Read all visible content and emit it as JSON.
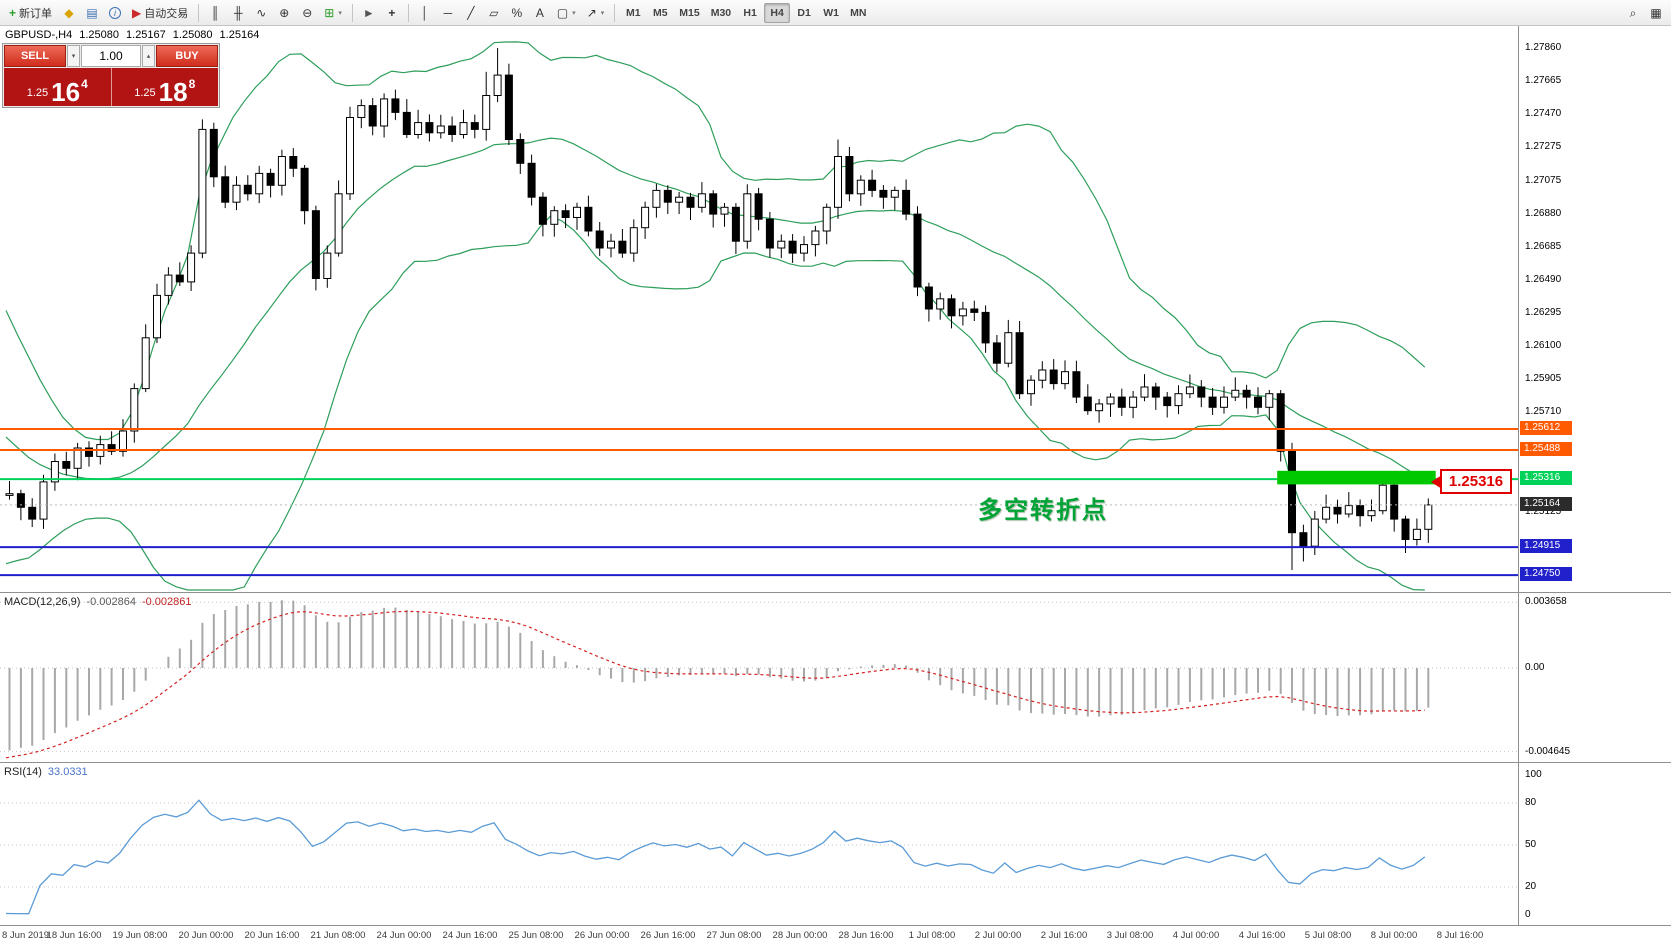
{
  "toolbar": {
    "new_order_label": "新订单",
    "autotrading_label": "自动交易",
    "timeframes": [
      "M1",
      "M5",
      "M15",
      "M30",
      "H1",
      "H4",
      "D1",
      "W1",
      "MN"
    ],
    "active_timeframe": "H4",
    "glyphs": {
      "new_order": "+",
      "market_watch": "◆",
      "chart_window": "▤",
      "info": "i",
      "autotrading": "▶",
      "bar_chart": "║",
      "candle_chart": "╫",
      "line_chart": "∿",
      "zoom_in": "⊕",
      "zoom_out": "⊖",
      "tile": "⊞",
      "cursor": "►",
      "crosshair": "+",
      "vline": "│",
      "hline": "─",
      "trendline": "╱",
      "channel": "▱",
      "fibo": "%",
      "text_tool": "A",
      "shapes": "▢",
      "arrows": "↗",
      "search": "⌕",
      "layout": "▦",
      "caret": "▾",
      "caret_up": "▴"
    }
  },
  "trade_panel": {
    "sell_label": "SELL",
    "buy_label": "BUY",
    "volume": "1.00",
    "sell_small": "1.25",
    "sell_big": "16",
    "sell_sup": "4",
    "buy_small": "1.25",
    "buy_big": "18",
    "buy_sup": "8"
  },
  "chart_header": {
    "symbol": "GBPUSD-,H4",
    "open": "1.25080",
    "high": "1.25167",
    "low": "1.25080",
    "close": "1.25164"
  },
  "annotation": {
    "text": "多空转折点"
  },
  "callout": {
    "text": "1.25316"
  },
  "price_axis": {
    "ticks": [
      {
        "label": "1.27860",
        "value": 1.2786
      },
      {
        "label": "1.27665",
        "value": 1.27665
      },
      {
        "label": "1.27470",
        "value": 1.2747
      },
      {
        "label": "1.27275",
        "value": 1.27275
      },
      {
        "label": "1.27075",
        "value": 1.27075
      },
      {
        "label": "1.26880",
        "value": 1.2688
      },
      {
        "label": "1.26685",
        "value": 1.26685
      },
      {
        "label": "1.26490",
        "value": 1.2649
      },
      {
        "label": "1.26295",
        "value": 1.26295
      },
      {
        "label": "1.26100",
        "value": 1.261
      },
      {
        "label": "1.25905",
        "value": 1.25905
      },
      {
        "label": "1.25710",
        "value": 1.2571
      },
      {
        "label": "1.25125",
        "value": 1.25125
      }
    ],
    "current": {
      "label": "1.25164",
      "value": 1.25164
    }
  },
  "macd": {
    "label": "MACD(12,26,9)",
    "value_main": "-0.002864",
    "value_signal": "-0.002861",
    "axis": [
      {
        "label": "0.003658",
        "value": 0.003658
      },
      {
        "label": "0.00",
        "value": 0
      },
      {
        "label": "-0.004645",
        "value": -0.004645
      }
    ]
  },
  "rsi": {
    "label": "RSI(14)",
    "value": "33.0331",
    "ticks": [
      {
        "label": "100",
        "value": 100
      },
      {
        "label": "80",
        "value": 80
      },
      {
        "label": "50",
        "value": 50
      },
      {
        "label": "20",
        "value": 20
      },
      {
        "label": "0",
        "value": 0
      }
    ],
    "levels": [
      80,
      50,
      20
    ]
  },
  "time_axis": [
    "8 Jun 2019",
    "18 Jun 16:00",
    "19 Jun 08:00",
    "20 Jun 00:00",
    "20 Jun 16:00",
    "21 Jun 08:00",
    "24 Jun 00:00",
    "24 Jun 16:00",
    "25 Jun 08:00",
    "26 Jun 00:00",
    "26 Jun 16:00",
    "27 Jun 08:00",
    "28 Jun 00:00",
    "28 Jun 16:00",
    "1 Jul 08:00",
    "2 Jul 00:00",
    "2 Jul 16:00",
    "3 Jul 08:00",
    "4 Jul 00:00",
    "4 Jul 16:00",
    "5 Jul 08:00",
    "8 Jul 00:00",
    "8 Jul 16:00"
  ],
  "colors": {
    "bands": "#2e9e5b",
    "bull": "#ffffff",
    "bear": "#000000",
    "macd_hist": "#a8a8a8",
    "macd_signal": "#d62222",
    "rsi_line": "#5b9bd5",
    "level_orange": "#ff5a00",
    "level_green": "#00d25a",
    "level_blue": "#2121cc",
    "current_label_bg": "#2b2b2b",
    "rect": "#00c800",
    "annotation": "#00a335",
    "callout": "#e00000",
    "panel_red": "#b21414"
  },
  "chart_data": {
    "type": "candlestick",
    "symbol": "GBPUSD-",
    "timeframe": "H4",
    "title": "GBPUSD- H4 candlestick chart with Bollinger Bands(20,2), MACD(12,26,9), RSI(14)",
    "ohlc_current": {
      "open": 1.2508,
      "high": 1.25167,
      "low": 1.2508,
      "close": 1.25164
    },
    "ylim": [
      1.2465,
      1.2799
    ],
    "pre_closes": [
      1.278,
      1.2768,
      1.2755,
      1.2742,
      1.2728,
      1.2714,
      1.27,
      1.2687,
      1.2674,
      1.2662,
      1.265,
      1.2638,
      1.2626,
      1.2614,
      1.2602,
      1.259,
      1.2578,
      1.2567,
      1.2557,
      1.2548,
      1.2541,
      1.2536,
      1.2532,
      1.2529,
      1.2527,
      1.2526,
      1.2525,
      1.2524,
      1.2523,
      1.2522
    ],
    "closes": [
      1.2523,
      1.2515,
      1.2508,
      1.253,
      1.2542,
      1.2538,
      1.255,
      1.2545,
      1.2552,
      1.2548,
      1.256,
      1.2585,
      1.2615,
      1.264,
      1.2652,
      1.2648,
      1.2665,
      1.2738,
      1.271,
      1.2695,
      1.2705,
      1.27,
      1.2712,
      1.2705,
      1.2722,
      1.2715,
      1.269,
      1.265,
      1.2665,
      1.27,
      1.2745,
      1.2752,
      1.274,
      1.2756,
      1.2748,
      1.2735,
      1.2742,
      1.2736,
      1.274,
      1.2735,
      1.2742,
      1.2738,
      1.2758,
      1.277,
      1.2732,
      1.2718,
      1.2698,
      1.2682,
      1.269,
      1.2686,
      1.2692,
      1.2678,
      1.2668,
      1.2672,
      1.2665,
      1.268,
      1.2692,
      1.2702,
      1.2695,
      1.2698,
      1.2692,
      1.27,
      1.2688,
      1.2692,
      1.2672,
      1.27,
      1.2685,
      1.2668,
      1.2672,
      1.2665,
      1.267,
      1.2678,
      1.2692,
      1.2722,
      1.27,
      1.2708,
      1.2702,
      1.2698,
      1.2702,
      1.2688,
      1.2645,
      1.2632,
      1.2638,
      1.2628,
      1.2632,
      1.263,
      1.2612,
      1.26,
      1.2618,
      1.2582,
      1.259,
      1.2596,
      1.2588,
      1.2595,
      1.258,
      1.2572,
      1.2576,
      1.258,
      1.2574,
      1.258,
      1.2586,
      1.258,
      1.2575,
      1.2582,
      1.2586,
      1.258,
      1.2574,
      1.258,
      1.2584,
      1.258,
      1.2574,
      1.2582,
      1.2548,
      1.25,
      1.2492,
      1.2508,
      1.2515,
      1.2511,
      1.2516,
      1.251,
      1.2513,
      1.2528,
      1.2508,
      1.2496,
      1.2502,
      1.25164
    ],
    "wick_overrides": {
      "17": {
        "low": 1.2662
      },
      "42": {
        "high": 1.2772
      },
      "43": {
        "high": 1.2786
      },
      "73": {
        "high": 1.2732
      },
      "112": {
        "low": 1.2542
      },
      "113": {
        "low": 1.2478
      },
      "114": {
        "low": 1.2483
      },
      "121": {
        "high": 1.2534
      },
      "125": {
        "low": 1.2494
      }
    },
    "indicators": [
      {
        "type": "bollinger",
        "period": 20,
        "deviation": 2
      },
      {
        "type": "macd",
        "fast": 12,
        "slow": 26,
        "signal": 9,
        "current_main": -0.002864,
        "current_signal": -0.002861
      },
      {
        "type": "rsi",
        "period": 14,
        "current": 33.0331
      }
    ],
    "hlines": [
      {
        "value": 1.25612,
        "label": "1.25612",
        "color": "#ff5a00",
        "width": 2
      },
      {
        "value": 1.25488,
        "label": "1.25488",
        "color": "#ff5a00",
        "width": 2
      },
      {
        "value": 1.25316,
        "label": "1.25316",
        "color": "#00d25a",
        "width": 2
      },
      {
        "value": 1.24915,
        "label": "1.24915",
        "color": "#2121cc",
        "width": 2
      },
      {
        "value": 1.2475,
        "label": "1.24750",
        "color": "#2121cc",
        "width": 2
      }
    ],
    "highlight_rect": {
      "from_index": 112,
      "to_index": 125,
      "price_top": 1.25365,
      "price_bottom": 1.25285
    }
  }
}
